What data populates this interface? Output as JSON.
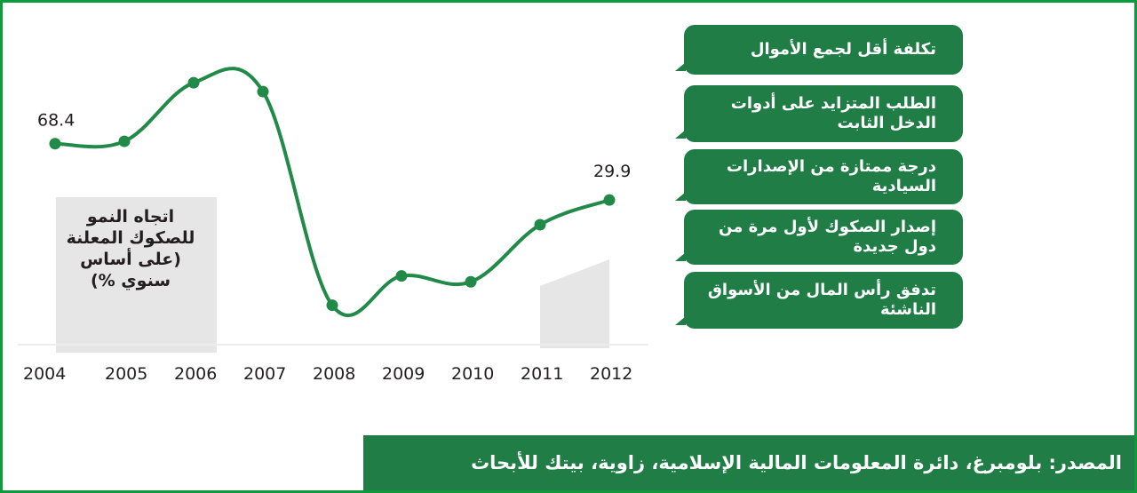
{
  "chart_data": {
    "type": "line",
    "title": "اتجاه النمو للصكوك المعلنة (على أساس سنوي %)",
    "categories": [
      "2004",
      "2005",
      "2006",
      "2007",
      "2008",
      "2009",
      "2010",
      "2011",
      "2012"
    ],
    "series": [
      {
        "values": [
          68.4,
          70.0,
          110.0,
          104.0,
          -42.0,
          -22.0,
          -26.0,
          13.0,
          29.9
        ]
      }
    ],
    "data_labels": [
      {
        "category": "2004",
        "text": "68.4"
      },
      {
        "category": "2012",
        "text": "29.9"
      }
    ],
    "ylim": [
      -58,
      118
    ],
    "grid": false,
    "line_color": "#218a48"
  },
  "callouts": [
    "تكلفة أقل لجمع الأموال",
    "الطلب المتزايد على أدوات الدخل الثابت",
    "درجة ممتازة من الإصدارات السيادية",
    "إصدار الصكوك لأول مرة من دول جديدة",
    "تدفق رأس المال من الأسواق الناشئة"
  ],
  "source": "المصدر: بلومبرغ، دائرة المعلومات المالية الإسلامية، زاوية، بيتك للأبحاث",
  "colors": {
    "accent": "#1f7d45",
    "border": "#0e9a3d",
    "shade": "#e6e6e6"
  }
}
